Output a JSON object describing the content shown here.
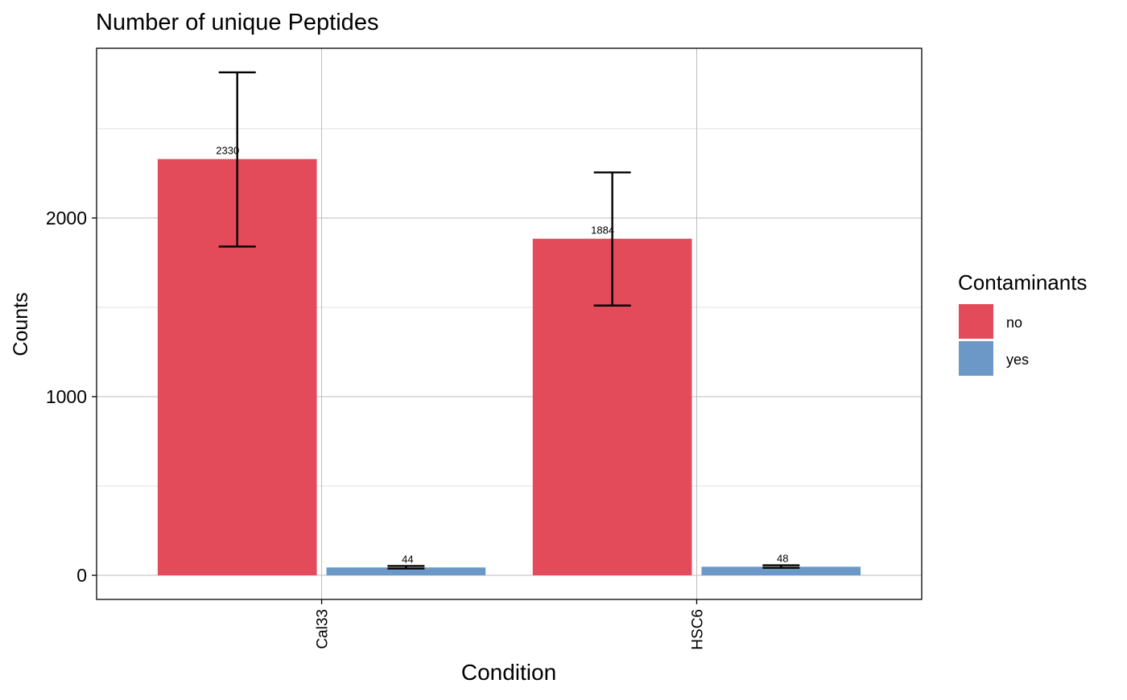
{
  "chart_data": {
    "type": "bar",
    "title": "Number of unique Peptides",
    "xlabel": "Condition",
    "ylabel": "Counts",
    "categories": [
      "Cal33",
      "HSC6"
    ],
    "ylim": [
      -135,
      2950
    ],
    "yticks": [
      0,
      1000,
      2000
    ],
    "grid": true,
    "legend": {
      "title": "Contaminants",
      "position": "right"
    },
    "series": [
      {
        "name": "no",
        "color": "#E34A5A",
        "values": [
          2330,
          1884
        ],
        "labels": [
          "2330",
          "1884"
        ],
        "error_low": [
          1840,
          1510
        ],
        "error_high": [
          2815,
          2255
        ]
      },
      {
        "name": "yes",
        "color": "#6B98C6",
        "values": [
          44,
          48
        ],
        "labels": [
          "44",
          "48"
        ],
        "error_low": [
          38,
          42
        ],
        "error_high": [
          52,
          56
        ]
      }
    ]
  }
}
